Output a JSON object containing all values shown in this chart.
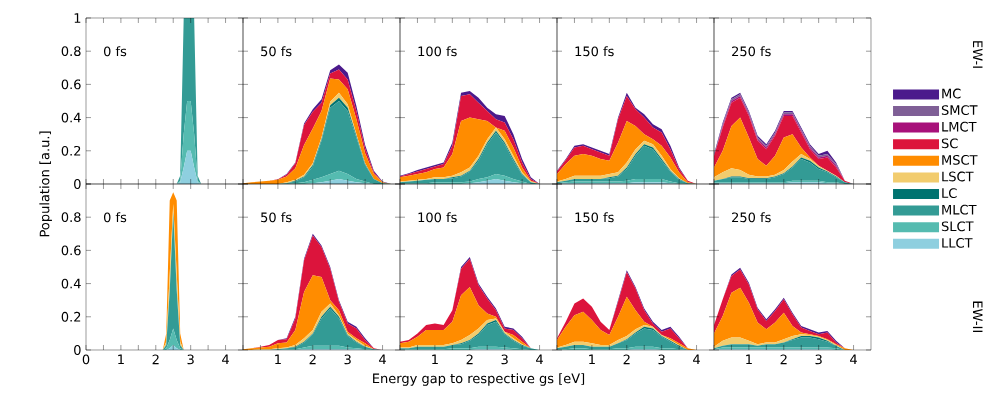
{
  "chart_data": [
    {
      "type": "area",
      "stacked": true,
      "title": "0 fs",
      "tick_labels": "y",
      "xlim": [
        0,
        4.5
      ],
      "ylim": [
        0,
        1
      ],
      "x": [
        0,
        2.6,
        2.7,
        2.8,
        2.9,
        3.0,
        3.1,
        3.2,
        3.3,
        4.5
      ],
      "xticks": [
        0,
        {
          "value": 0.5,
          "label": null
        },
        1,
        {
          "value": 1.5,
          "label": null
        },
        2,
        {
          "value": 2.5,
          "label": null
        },
        3,
        {
          "value": 3.5,
          "label": null
        },
        4
      ],
      "yticks": [
        0,
        0.2,
        0.4,
        0.6,
        0.8,
        1
      ],
      "series": [
        {
          "color": "#8ecfdf",
          "values": [
            0,
            0,
            0.01,
            0.1,
            0.2,
            0.2,
            0.1,
            0.01,
            0,
            0
          ]
        },
        {
          "color": "#55bbb0",
          "values": [
            0,
            0,
            0.01,
            0.2,
            0.3,
            0.3,
            0.2,
            0.01,
            0,
            0
          ]
        },
        {
          "color": "#339b95",
          "values": [
            0,
            0,
            0.03,
            0.7,
            0.5,
            0.5,
            0.7,
            0.03,
            0,
            0
          ]
        }
      ]
    },
    {
      "type": "area",
      "stacked": true,
      "title": "50 fs",
      "tick_labels": false,
      "xlim": [
        0,
        4.5
      ],
      "ylim": [
        0,
        1
      ],
      "x": [
        0,
        0.25,
        0.5,
        0.75,
        1,
        1.25,
        1.5,
        1.75,
        2,
        2.25,
        2.5,
        2.75,
        3,
        3.25,
        3.5,
        3.75,
        4,
        4.25,
        4.5
      ],
      "xticks": [
        {
          "value": 0,
          "label": null
        },
        {
          "value": 0.5,
          "label": null
        },
        1,
        {
          "value": 1.5,
          "label": null
        },
        2,
        {
          "value": 2.5,
          "label": null
        },
        3,
        {
          "value": 3.5,
          "label": null
        },
        4
      ],
      "yticks": [
        0,
        0.2,
        0.4,
        0.6,
        0.8,
        1
      ],
      "series": [
        {
          "color": "#8ecfdf",
          "values": [
            0,
            0,
            0,
            0,
            0,
            0,
            0,
            0,
            0.005,
            0.01,
            0.02,
            0.03,
            0.02,
            0.01,
            0.005,
            0,
            0,
            0,
            0
          ]
        },
        {
          "color": "#55bbb0",
          "values": [
            0,
            0,
            0,
            0,
            0,
            0,
            0.005,
            0.01,
            0.02,
            0.03,
            0.04,
            0.05,
            0.04,
            0.02,
            0.01,
            0,
            0,
            0,
            0
          ]
        },
        {
          "color": "#339b95",
          "values": [
            0,
            0,
            0,
            0,
            0,
            0.005,
            0.01,
            0.03,
            0.08,
            0.22,
            0.4,
            0.42,
            0.38,
            0.25,
            0.1,
            0.03,
            0.005,
            0,
            0
          ]
        },
        {
          "color": "#007370",
          "values": [
            0,
            0,
            0,
            0,
            0,
            0,
            0.005,
            0.005,
            0.01,
            0.01,
            0.015,
            0.02,
            0.02,
            0.01,
            0.005,
            0,
            0,
            0,
            0
          ]
        },
        {
          "color": "#f2cc6e",
          "values": [
            0,
            0,
            0,
            0,
            0,
            0.005,
            0.005,
            0.01,
            0.01,
            0.01,
            0.02,
            0.03,
            0.02,
            0.01,
            0.005,
            0,
            0,
            0,
            0
          ]
        },
        {
          "color": "#ff8c00",
          "values": [
            0.005,
            0.01,
            0.015,
            0.02,
            0.025,
            0.035,
            0.07,
            0.18,
            0.21,
            0.16,
            0.14,
            0.08,
            0.09,
            0.09,
            0.06,
            0.03,
            0.005,
            0,
            0
          ]
        },
        {
          "color": "#dc143c",
          "values": [
            0,
            0,
            0,
            0,
            0.003,
            0.01,
            0.03,
            0.12,
            0.1,
            0.05,
            0.03,
            0.06,
            0.06,
            0.05,
            0.03,
            0.01,
            0,
            0,
            0
          ]
        },
        {
          "color": "#4b1a8c",
          "values": [
            0,
            0,
            0,
            0,
            0,
            0.005,
            0.005,
            0.01,
            0.015,
            0.02,
            0.02,
            0.03,
            0.04,
            0.03,
            0.02,
            0.01,
            0.005,
            0,
            0
          ]
        }
      ]
    },
    {
      "type": "area",
      "stacked": true,
      "title": "100 fs",
      "tick_labels": false,
      "xlim": [
        0,
        4.5
      ],
      "ylim": [
        0,
        1
      ],
      "x": [
        0,
        0.25,
        0.5,
        0.75,
        1,
        1.25,
        1.5,
        1.75,
        2,
        2.25,
        2.5,
        2.75,
        3,
        3.25,
        3.5,
        3.75,
        4,
        4.25,
        4.5
      ],
      "xticks": [
        {
          "value": 0,
          "label": null
        },
        {
          "value": 0.5,
          "label": null
        },
        1,
        {
          "value": 1.5,
          "label": null
        },
        2,
        {
          "value": 2.5,
          "label": null
        },
        3,
        {
          "value": 3.5,
          "label": null
        },
        4
      ],
      "yticks": [
        0,
        0.2,
        0.4,
        0.6,
        0.8,
        1
      ],
      "series": [
        {
          "color": "#8ecfdf",
          "values": [
            0,
            0,
            0,
            0,
            0,
            0,
            0,
            0,
            0.005,
            0.01,
            0.02,
            0.03,
            0.02,
            0.01,
            0.005,
            0,
            0,
            0,
            0
          ]
        },
        {
          "color": "#55bbb0",
          "values": [
            0.005,
            0.005,
            0.005,
            0.005,
            0.01,
            0.01,
            0.01,
            0.01,
            0.01,
            0.02,
            0.02,
            0.03,
            0.03,
            0.02,
            0.01,
            0,
            0,
            0,
            0
          ]
        },
        {
          "color": "#339b95",
          "values": [
            0.005,
            0.01,
            0.015,
            0.02,
            0.02,
            0.02,
            0.025,
            0.035,
            0.06,
            0.11,
            0.2,
            0.25,
            0.19,
            0.11,
            0.04,
            0.01,
            0,
            0,
            0
          ]
        },
        {
          "color": "#007370",
          "values": [
            0,
            0,
            0,
            0,
            0,
            0,
            0.005,
            0.005,
            0.005,
            0.01,
            0.01,
            0.01,
            0.01,
            0.01,
            0.005,
            0,
            0,
            0,
            0
          ]
        },
        {
          "color": "#f2cc6e",
          "values": [
            0.005,
            0.005,
            0.005,
            0.005,
            0.01,
            0.01,
            0.01,
            0.02,
            0.02,
            0.02,
            0.02,
            0.02,
            0.02,
            0.02,
            0.01,
            0.005,
            0,
            0,
            0
          ]
        },
        {
          "color": "#ff8c00",
          "values": [
            0.025,
            0.03,
            0.035,
            0.04,
            0.05,
            0.06,
            0.13,
            0.31,
            0.3,
            0.22,
            0.11,
            0,
            0.05,
            0.05,
            0.03,
            0.005,
            0,
            0,
            0
          ]
        },
        {
          "color": "#dc143c",
          "values": [
            0.005,
            0.01,
            0.015,
            0.02,
            0.015,
            0.02,
            0.05,
            0.15,
            0.14,
            0.1,
            0.06,
            0.05,
            0.05,
            0.05,
            0.03,
            0.01,
            0,
            0,
            0
          ]
        },
        {
          "color": "#4b1a8c",
          "values": [
            0.005,
            0.005,
            0.01,
            0.01,
            0.01,
            0.01,
            0.02,
            0.02,
            0.02,
            0.03,
            0.02,
            0.03,
            0.04,
            0.03,
            0.02,
            0.01,
            0,
            0,
            0
          ]
        }
      ]
    },
    {
      "type": "area",
      "stacked": true,
      "title": "150 fs",
      "tick_labels": false,
      "xlim": [
        0,
        4.5
      ],
      "ylim": [
        0,
        1
      ],
      "x": [
        0,
        0.25,
        0.5,
        0.75,
        1,
        1.25,
        1.5,
        1.75,
        2,
        2.25,
        2.5,
        2.75,
        3,
        3.25,
        3.5,
        3.75,
        4,
        4.25,
        4.5
      ],
      "xticks": [
        {
          "value": 0,
          "label": null
        },
        {
          "value": 0.5,
          "label": null
        },
        1,
        {
          "value": 1.5,
          "label": null
        },
        2,
        {
          "value": 2.5,
          "label": null
        },
        3,
        {
          "value": 3.5,
          "label": null
        },
        4
      ],
      "yticks": [
        0,
        0.2,
        0.4,
        0.6,
        0.8,
        1
      ],
      "series": [
        {
          "color": "#8ecfdf",
          "values": [
            0.002,
            0.005,
            0.005,
            0.005,
            0.005,
            0.005,
            0.005,
            0.005,
            0.005,
            0.01,
            0.01,
            0.01,
            0.01,
            0.005,
            0,
            0,
            0,
            0,
            0
          ]
        },
        {
          "color": "#55bbb0",
          "values": [
            0.003,
            0.005,
            0.01,
            0.01,
            0.01,
            0.01,
            0.01,
            0.01,
            0.015,
            0.02,
            0.02,
            0.02,
            0.02,
            0.01,
            0.005,
            0,
            0,
            0,
            0
          ]
        },
        {
          "color": "#339b95",
          "values": [
            0.005,
            0.01,
            0.015,
            0.015,
            0.015,
            0.015,
            0.02,
            0.03,
            0.07,
            0.14,
            0.2,
            0.18,
            0.11,
            0.06,
            0.02,
            0.005,
            0,
            0,
            0
          ]
        },
        {
          "color": "#007370",
          "values": [
            0,
            0,
            0,
            0,
            0,
            0,
            0.005,
            0.005,
            0.01,
            0.01,
            0.01,
            0.01,
            0.01,
            0.005,
            0.005,
            0,
            0,
            0,
            0
          ]
        },
        {
          "color": "#f2cc6e",
          "values": [
            0.005,
            0.01,
            0.02,
            0.02,
            0.02,
            0.02,
            0.02,
            0.02,
            0.03,
            0.03,
            0.02,
            0.02,
            0.02,
            0.01,
            0.005,
            0,
            0,
            0,
            0
          ]
        },
        {
          "color": "#ff8c00",
          "values": [
            0.045,
            0.09,
            0.12,
            0.13,
            0.12,
            0.1,
            0.08,
            0.18,
            0.25,
            0.14,
            0.04,
            0.03,
            0.06,
            0.07,
            0.035,
            0.005,
            0,
            0,
            0
          ]
        },
        {
          "color": "#dc143c",
          "values": [
            0.015,
            0.025,
            0.05,
            0.05,
            0.04,
            0.04,
            0.03,
            0.14,
            0.15,
            0.1,
            0.1,
            0.07,
            0.08,
            0.05,
            0.02,
            0.01,
            0,
            0,
            0
          ]
        },
        {
          "color": "#4b1a8c",
          "values": [
            0.005,
            0.005,
            0.01,
            0.01,
            0.01,
            0.01,
            0.01,
            0.01,
            0.02,
            0.01,
            0.02,
            0.02,
            0.02,
            0.02,
            0.01,
            0,
            0,
            0,
            0
          ]
        }
      ]
    },
    {
      "type": "area",
      "stacked": true,
      "title": "250 fs",
      "tick_labels": false,
      "legend": "right",
      "annotations": [
        "EW-I"
      ],
      "xlim": [
        0,
        4.5
      ],
      "ylim": [
        0,
        1
      ],
      "x": [
        0,
        0.25,
        0.5,
        0.75,
        1,
        1.25,
        1.5,
        1.75,
        2,
        2.25,
        2.5,
        2.75,
        3,
        3.25,
        3.5,
        3.75,
        4,
        4.25,
        4.5
      ],
      "xticks": [
        {
          "value": 0,
          "label": null
        },
        {
          "value": 0.5,
          "label": null
        },
        1,
        {
          "value": 1.5,
          "label": null
        },
        2,
        {
          "value": 2.5,
          "label": null
        },
        3,
        {
          "value": 3.5,
          "label": null
        },
        4
      ],
      "yticks": [
        0,
        0.2,
        0.4,
        0.6,
        0.8,
        1
      ],
      "series": [
        {
          "name": "LLCT",
          "color": "#8ecfdf",
          "values": [
            0.005,
            0.005,
            0.005,
            0.005,
            0.005,
            0.005,
            0.005,
            0.005,
            0.005,
            0.01,
            0.01,
            0.01,
            0.01,
            0.005,
            0.005,
            0,
            0,
            0,
            0
          ]
        },
        {
          "name": "SLCT",
          "color": "#55bbb0",
          "values": [
            0.005,
            0.005,
            0.005,
            0.005,
            0.005,
            0.005,
            0.005,
            0.005,
            0.005,
            0.01,
            0.01,
            0.01,
            0.01,
            0.005,
            0.005,
            0,
            0,
            0,
            0
          ]
        },
        {
          "name": "MLCT",
          "color": "#339b95",
          "values": [
            0.01,
            0.02,
            0.03,
            0.03,
            0.02,
            0.02,
            0.02,
            0.03,
            0.05,
            0.08,
            0.13,
            0.11,
            0.07,
            0.06,
            0.03,
            0.01,
            0,
            0,
            0
          ]
        },
        {
          "name": "LC",
          "color": "#007370",
          "values": [
            0,
            0,
            0.005,
            0.005,
            0.005,
            0.005,
            0.005,
            0.005,
            0.005,
            0.005,
            0.01,
            0.01,
            0.01,
            0.005,
            0.005,
            0,
            0,
            0,
            0
          ]
        },
        {
          "name": "LSCT",
          "color": "#f2cc6e",
          "values": [
            0.02,
            0.04,
            0.05,
            0.04,
            0.02,
            0.01,
            0.01,
            0.01,
            0.02,
            0.03,
            0.02,
            0.01,
            0.01,
            0.005,
            0.005,
            0,
            0,
            0,
            0
          ]
        },
        {
          "name": "MSCT",
          "color": "#ff8c00",
          "values": [
            0.06,
            0.13,
            0.255,
            0.315,
            0.225,
            0.105,
            0.065,
            0.115,
            0.195,
            0.165,
            0.04,
            0.01,
            0,
            0,
            0,
            0,
            0,
            0,
            0
          ]
        },
        {
          "name": "SC",
          "color": "#dc143c",
          "values": [
            0.07,
            0.14,
            0.14,
            0.12,
            0.13,
            0.11,
            0.1,
            0.12,
            0.13,
            0.11,
            0.09,
            0.05,
            0.04,
            0.08,
            0.05,
            0.01,
            0,
            0,
            0
          ]
        },
        {
          "name": "LMCT",
          "color": "#a8117a",
          "values": [
            0,
            0.01,
            0.01,
            0.01,
            0.01,
            0.01,
            0.01,
            0.01,
            0.01,
            0.01,
            0.01,
            0.01,
            0.01,
            0.01,
            0.01,
            0,
            0,
            0,
            0
          ]
        },
        {
          "name": "SMCT",
          "color": "#7f5f96",
          "values": [
            0,
            0.01,
            0.01,
            0.01,
            0.01,
            0.01,
            0.01,
            0.01,
            0.01,
            0.01,
            0.01,
            0.01,
            0.01,
            0.01,
            0.01,
            0,
            0,
            0,
            0
          ]
        },
        {
          "name": "MC",
          "color": "#4b1a8c",
          "values": [
            0.01,
            0.01,
            0.01,
            0.01,
            0.01,
            0.01,
            0.01,
            0.01,
            0.01,
            0.01,
            0.01,
            0.01,
            0.01,
            0.02,
            0.01,
            0,
            0,
            0,
            0
          ]
        }
      ]
    },
    {
      "type": "area",
      "stacked": true,
      "title": "0 fs",
      "ylabel": "Population [a.u.]",
      "xlim": [
        0,
        4.5
      ],
      "ylim": [
        0,
        1
      ],
      "x": [
        0,
        2.2,
        2.3,
        2.4,
        2.5,
        2.6,
        2.7,
        2.8,
        4.5
      ],
      "xticks": [
        0,
        {
          "value": 0.5,
          "label": null
        },
        1,
        {
          "value": 1.5,
          "label": null
        },
        2,
        {
          "value": 2.5,
          "label": null
        },
        3,
        {
          "value": 3.5,
          "label": null
        },
        4
      ],
      "yticks": [
        0,
        0.2,
        0.4,
        0.6,
        0.8,
        {
          "value": 1,
          "label": null
        }
      ],
      "series": [
        {
          "color": "#8ecfdf",
          "values": [
            0,
            0,
            0,
            0.01,
            0.03,
            0.01,
            0,
            0,
            0
          ]
        },
        {
          "color": "#55bbb0",
          "values": [
            0,
            0,
            0.01,
            0.05,
            0.1,
            0.05,
            0.01,
            0,
            0
          ]
        },
        {
          "color": "#339b95",
          "values": [
            0,
            0,
            0.02,
            0.3,
            0.7,
            0.3,
            0.02,
            0,
            0
          ]
        },
        {
          "color": "#f2cc6e",
          "values": [
            0,
            0,
            0.02,
            0.1,
            0.05,
            0.1,
            0.02,
            0,
            0
          ]
        },
        {
          "color": "#ff8c00",
          "values": [
            0,
            0,
            0.05,
            0.44,
            0.07,
            0.44,
            0.05,
            0,
            0
          ]
        }
      ]
    },
    {
      "type": "area",
      "stacked": true,
      "title": "50 fs",
      "tick_labels": "x",
      "xlim": [
        0,
        4.5
      ],
      "ylim": [
        0,
        1
      ],
      "x": [
        0,
        0.25,
        0.5,
        0.75,
        1,
        1.25,
        1.5,
        1.75,
        2,
        2.25,
        2.5,
        2.75,
        3,
        3.25,
        3.5,
        3.75,
        4,
        4.25,
        4.5
      ],
      "xticks": [
        {
          "value": 0,
          "label": null
        },
        {
          "value": 0.5,
          "label": null
        },
        1,
        {
          "value": 1.5,
          "label": null
        },
        2,
        {
          "value": 2.5,
          "label": null
        },
        3,
        {
          "value": 3.5,
          "label": null
        },
        4
      ],
      "yticks": [
        0,
        0.2,
        0.4,
        0.6,
        0.8,
        1
      ],
      "series": [
        {
          "color": "#8ecfdf",
          "values": [
            0,
            0,
            0,
            0,
            0,
            0,
            0,
            0.005,
            0.005,
            0.005,
            0.005,
            0.005,
            0.005,
            0.005,
            0,
            0,
            0,
            0,
            0
          ]
        },
        {
          "color": "#55bbb0",
          "values": [
            0,
            0,
            0,
            0,
            0,
            0.005,
            0.005,
            0.01,
            0.02,
            0.02,
            0.02,
            0.02,
            0.01,
            0.005,
            0.005,
            0,
            0,
            0,
            0
          ]
        },
        {
          "color": "#339b95",
          "values": [
            0,
            0,
            0,
            0,
            0.005,
            0.005,
            0.01,
            0.03,
            0.07,
            0.165,
            0.225,
            0.165,
            0.07,
            0.035,
            0.015,
            0.005,
            0,
            0,
            0
          ]
        },
        {
          "color": "#007370",
          "values": [
            0,
            0,
            0,
            0,
            0,
            0,
            0.005,
            0.005,
            0.005,
            0.01,
            0.01,
            0.01,
            0.005,
            0.005,
            0,
            0,
            0,
            0,
            0
          ]
        },
        {
          "color": "#f2cc6e",
          "values": [
            0,
            0,
            0.005,
            0.005,
            0.005,
            0.005,
            0.01,
            0.02,
            0.02,
            0.03,
            0.02,
            0.01,
            0.01,
            0.01,
            0.005,
            0,
            0,
            0,
            0
          ]
        },
        {
          "color": "#ff8c00",
          "values": [
            0.005,
            0.01,
            0.01,
            0.015,
            0.03,
            0.03,
            0.09,
            0.28,
            0.33,
            0.21,
            0.02,
            0.03,
            0.01,
            0.01,
            0.015,
            0,
            0,
            0,
            0
          ]
        },
        {
          "color": "#dc143c",
          "values": [
            0,
            0,
            0.005,
            0.01,
            0.02,
            0.02,
            0.07,
            0.19,
            0.24,
            0.18,
            0.19,
            0.05,
            0.05,
            0.06,
            0.02,
            0.005,
            0,
            0,
            0
          ]
        },
        {
          "color": "#4b1a8c",
          "values": [
            0,
            0,
            0,
            0,
            0,
            0.005,
            0.01,
            0.01,
            0.01,
            0.01,
            0.01,
            0.01,
            0.01,
            0.01,
            0.01,
            0,
            0,
            0,
            0
          ]
        }
      ]
    },
    {
      "type": "area",
      "stacked": true,
      "title": "100 fs",
      "xlabel": "Energy gap to respective gs [eV]",
      "tick_labels": "x",
      "xlim": [
        0,
        4.5
      ],
      "ylim": [
        0,
        1
      ],
      "x": [
        0,
        0.25,
        0.5,
        0.75,
        1,
        1.25,
        1.5,
        1.75,
        2,
        2.25,
        2.5,
        2.75,
        3,
        3.25,
        3.5,
        3.75,
        4,
        4.25,
        4.5
      ],
      "xticks": [
        {
          "value": 0,
          "label": null
        },
        {
          "value": 0.5,
          "label": null
        },
        1,
        {
          "value": 1.5,
          "label": null
        },
        2,
        {
          "value": 2.5,
          "label": null
        },
        3,
        {
          "value": 3.5,
          "label": null
        },
        4
      ],
      "yticks": [
        0,
        0.2,
        0.4,
        0.6,
        0.8,
        1
      ],
      "series": [
        {
          "color": "#8ecfdf",
          "values": [
            0,
            0,
            0,
            0,
            0,
            0,
            0,
            0,
            0,
            0.005,
            0.005,
            0.005,
            0.005,
            0,
            0,
            0,
            0,
            0,
            0
          ]
        },
        {
          "color": "#55bbb0",
          "values": [
            0.005,
            0.005,
            0.005,
            0.005,
            0.005,
            0.005,
            0.01,
            0.01,
            0.01,
            0.015,
            0.015,
            0.015,
            0.01,
            0.01,
            0.005,
            0,
            0,
            0,
            0
          ]
        },
        {
          "color": "#339b95",
          "values": [
            0.005,
            0.005,
            0.015,
            0.015,
            0.015,
            0.015,
            0.02,
            0.025,
            0.045,
            0.07,
            0.13,
            0.15,
            0.08,
            0.045,
            0.02,
            0.01,
            0,
            0,
            0
          ]
        },
        {
          "color": "#007370",
          "values": [
            0,
            0,
            0,
            0,
            0,
            0,
            0,
            0.005,
            0.005,
            0.01,
            0.01,
            0.01,
            0.005,
            0.005,
            0.005,
            0,
            0,
            0,
            0
          ]
        },
        {
          "color": "#f2cc6e",
          "values": [
            0.005,
            0.005,
            0.01,
            0.01,
            0.01,
            0.01,
            0.01,
            0.02,
            0.03,
            0.03,
            0.02,
            0.01,
            0.01,
            0.01,
            0.005,
            0,
            0,
            0,
            0
          ]
        },
        {
          "color": "#ff8c00",
          "values": [
            0.025,
            0.035,
            0.05,
            0.09,
            0.09,
            0.09,
            0.13,
            0.27,
            0.29,
            0.14,
            0.04,
            0.01,
            0,
            0.02,
            0.015,
            0,
            0,
            0,
            0
          ]
        },
        {
          "color": "#dc143c",
          "values": [
            0.01,
            0.01,
            0.02,
            0.03,
            0.04,
            0.03,
            0.07,
            0.16,
            0.17,
            0.12,
            0.09,
            0.04,
            0.02,
            0.03,
            0.02,
            0,
            0,
            0,
            0
          ]
        },
        {
          "color": "#4b1a8c",
          "values": [
            0,
            0,
            0,
            0,
            0,
            0,
            0,
            0.01,
            0.01,
            0.01,
            0.01,
            0.01,
            0.01,
            0.01,
            0.01,
            0,
            0,
            0,
            0
          ]
        }
      ]
    },
    {
      "type": "area",
      "stacked": true,
      "title": "150 fs",
      "tick_labels": "x",
      "xlim": [
        0,
        4.5
      ],
      "ylim": [
        0,
        1
      ],
      "x": [
        0,
        0.25,
        0.5,
        0.75,
        1,
        1.25,
        1.5,
        1.75,
        2,
        2.25,
        2.5,
        2.75,
        3,
        3.25,
        3.5,
        3.75,
        4,
        4.25,
        4.5
      ],
      "xticks": [
        {
          "value": 0,
          "label": null
        },
        {
          "value": 0.5,
          "label": null
        },
        1,
        {
          "value": 1.5,
          "label": null
        },
        2,
        {
          "value": 2.5,
          "label": null
        },
        3,
        {
          "value": 3.5,
          "label": null
        },
        4
      ],
      "yticks": [
        0,
        0.2,
        0.4,
        0.6,
        0.8,
        1
      ],
      "series": [
        {
          "color": "#8ecfdf",
          "values": [
            0,
            0,
            0,
            0,
            0,
            0,
            0,
            0,
            0,
            0.005,
            0.005,
            0.005,
            0,
            0,
            0,
            0,
            0,
            0,
            0
          ]
        },
        {
          "color": "#55bbb0",
          "values": [
            0.005,
            0.005,
            0.01,
            0.01,
            0.005,
            0.005,
            0.005,
            0.01,
            0.01,
            0.015,
            0.015,
            0.015,
            0.01,
            0.01,
            0.005,
            0,
            0,
            0,
            0
          ]
        },
        {
          "color": "#339b95",
          "values": [
            0.005,
            0.015,
            0.02,
            0.02,
            0.015,
            0.015,
            0.015,
            0.03,
            0.05,
            0.08,
            0.11,
            0.1,
            0.07,
            0.04,
            0.015,
            0,
            0,
            0,
            0
          ]
        },
        {
          "color": "#007370",
          "values": [
            0,
            0,
            0,
            0,
            0,
            0,
            0,
            0,
            0.005,
            0.005,
            0.01,
            0.01,
            0.005,
            0.005,
            0.005,
            0,
            0,
            0,
            0
          ]
        },
        {
          "color": "#f2cc6e",
          "values": [
            0.005,
            0.01,
            0.02,
            0.02,
            0.02,
            0.01,
            0.01,
            0.02,
            0.02,
            0.02,
            0.01,
            0.01,
            0.005,
            0.005,
            0.005,
            0,
            0,
            0,
            0
          ]
        },
        {
          "color": "#ff8c00",
          "values": [
            0.045,
            0.11,
            0.16,
            0.18,
            0.14,
            0.09,
            0.06,
            0.14,
            0.235,
            0.115,
            0.02,
            0,
            0,
            0.01,
            0.01,
            0.01,
            0,
            0,
            0
          ]
        },
        {
          "color": "#dc143c",
          "values": [
            0.01,
            0.03,
            0.07,
            0.08,
            0.08,
            0.05,
            0.03,
            0.09,
            0.15,
            0.13,
            0.07,
            0.02,
            0.02,
            0.06,
            0.03,
            0,
            0,
            0,
            0
          ]
        },
        {
          "color": "#4b1a8c",
          "values": [
            0,
            0,
            0,
            0,
            0,
            0,
            0,
            0.01,
            0.01,
            0.01,
            0.01,
            0.01,
            0.01,
            0.01,
            0.01,
            0,
            0,
            0,
            0
          ]
        }
      ]
    },
    {
      "type": "area",
      "stacked": true,
      "title": "250 fs",
      "tick_labels": "x",
      "annotations": [
        "EW-II"
      ],
      "xlim": [
        0,
        4.5
      ],
      "ylim": [
        0,
        1
      ],
      "x": [
        0,
        0.25,
        0.5,
        0.75,
        1,
        1.25,
        1.5,
        1.75,
        2,
        2.25,
        2.5,
        2.75,
        3,
        3.25,
        3.5,
        3.75,
        4,
        4.25,
        4.5
      ],
      "xticks": [
        {
          "value": 0,
          "label": null
        },
        {
          "value": 0.5,
          "label": null
        },
        1,
        {
          "value": 1.5,
          "label": null
        },
        2,
        {
          "value": 2.5,
          "label": null
        },
        3,
        {
          "value": 3.5,
          "label": null
        },
        4
      ],
      "yticks": [
        0,
        0.2,
        0.4,
        0.6,
        0.8,
        1
      ],
      "series": [
        {
          "color": "#8ecfdf",
          "values": [
            0.005,
            0.005,
            0.005,
            0.005,
            0.005,
            0.005,
            0.005,
            0.005,
            0.005,
            0.005,
            0.005,
            0.005,
            0.005,
            0.005,
            0,
            0,
            0,
            0,
            0
          ]
        },
        {
          "color": "#55bbb0",
          "values": [
            0,
            0.01,
            0.01,
            0.01,
            0.01,
            0.01,
            0.01,
            0.01,
            0.01,
            0.01,
            0.01,
            0.01,
            0.01,
            0.01,
            0.01,
            0,
            0,
            0,
            0
          ]
        },
        {
          "color": "#339b95",
          "values": [
            0.005,
            0.01,
            0.02,
            0.02,
            0.02,
            0.01,
            0.02,
            0.02,
            0.03,
            0.045,
            0.06,
            0.06,
            0.05,
            0.035,
            0.015,
            0,
            0,
            0,
            0
          ]
        },
        {
          "color": "#007370",
          "values": [
            0,
            0,
            0,
            0,
            0,
            0,
            0,
            0,
            0,
            0.005,
            0.01,
            0.01,
            0.01,
            0.005,
            0,
            0,
            0,
            0,
            0
          ]
        },
        {
          "color": "#f2cc6e",
          "values": [
            0.01,
            0.03,
            0.04,
            0.04,
            0.02,
            0.01,
            0.01,
            0.01,
            0.02,
            0.02,
            0.01,
            0.005,
            0.005,
            0.005,
            0.005,
            0,
            0,
            0,
            0
          ]
        },
        {
          "color": "#ff8c00",
          "values": [
            0.08,
            0.15,
            0.27,
            0.3,
            0.23,
            0.13,
            0.08,
            0.12,
            0.16,
            0.06,
            0.01,
            0.005,
            0.005,
            0.005,
            0.005,
            0.01,
            0,
            0,
            0
          ]
        },
        {
          "color": "#dc143c",
          "values": [
            0.05,
            0.1,
            0.1,
            0.11,
            0.11,
            0.08,
            0.05,
            0.07,
            0.08,
            0.07,
            0.03,
            0.02,
            0.01,
            0.04,
            0.01,
            0,
            0,
            0,
            0
          ]
        },
        {
          "color": "#4b1a8c",
          "values": [
            0,
            0,
            0.01,
            0.01,
            0.01,
            0.01,
            0.01,
            0.01,
            0.01,
            0.01,
            0.01,
            0.01,
            0.01,
            0.01,
            0.01,
            0,
            0,
            0,
            0
          ]
        }
      ]
    }
  ]
}
